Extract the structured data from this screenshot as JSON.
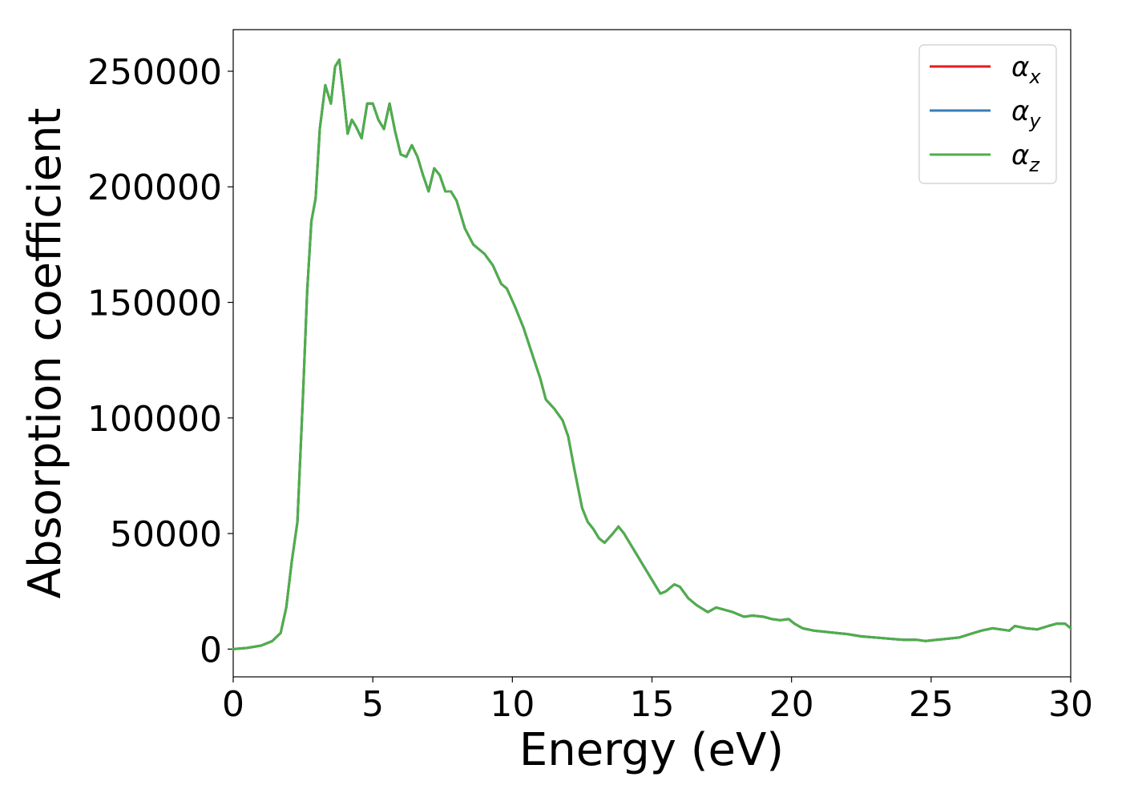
{
  "chart_data": {
    "type": "line",
    "xlabel": "Energy (eV)",
    "ylabel": "Absorption coefficient",
    "xlim": [
      0,
      30
    ],
    "ylim": [
      -12000,
      268000
    ],
    "xticks": [
      0,
      5,
      10,
      15,
      20,
      25,
      30
    ],
    "yticks": [
      0,
      50000,
      100000,
      150000,
      200000,
      250000
    ],
    "grid": false,
    "legend_position": "top-right",
    "series": [
      {
        "name": "α",
        "subscript": "x",
        "color": "#e41a1c"
      },
      {
        "name": "α",
        "subscript": "y",
        "color": "#377eb8"
      },
      {
        "name": "α",
        "subscript": "z",
        "color": "#4daf4a"
      }
    ],
    "x": [
      0,
      0.5,
      1.0,
      1.4,
      1.7,
      1.9,
      2.1,
      2.3,
      2.5,
      2.65,
      2.8,
      2.95,
      3.1,
      3.3,
      3.5,
      3.65,
      3.8,
      3.95,
      4.1,
      4.25,
      4.4,
      4.6,
      4.8,
      5.0,
      5.2,
      5.4,
      5.6,
      5.8,
      6.0,
      6.2,
      6.4,
      6.6,
      6.8,
      7.0,
      7.2,
      7.4,
      7.6,
      7.8,
      8.0,
      8.3,
      8.6,
      9.0,
      9.3,
      9.6,
      9.8,
      10.1,
      10.4,
      10.7,
      11.0,
      11.2,
      11.5,
      11.8,
      12.0,
      12.2,
      12.5,
      12.7,
      12.9,
      13.1,
      13.3,
      13.6,
      13.8,
      14.0,
      14.2,
      14.4,
      14.7,
      15.0,
      15.3,
      15.5,
      15.8,
      16.0,
      16.3,
      16.6,
      17.0,
      17.3,
      17.6,
      17.9,
      18.3,
      18.6,
      19.0,
      19.3,
      19.6,
      19.9,
      20.1,
      20.4,
      20.8,
      21.2,
      21.6,
      22.0,
      22.5,
      23.0,
      23.5,
      24.0,
      24.5,
      24.8,
      25.2,
      25.6,
      26.0,
      26.4,
      26.8,
      27.2,
      27.5,
      27.8,
      28.0,
      28.4,
      28.8,
      29.2,
      29.5,
      29.8,
      30.0
    ],
    "values": [
      0,
      500,
      1500,
      3500,
      7000,
      18000,
      38000,
      55000,
      110000,
      155000,
      185000,
      195000,
      225000,
      244000,
      236000,
      252000,
      255000,
      240000,
      223000,
      229000,
      226000,
      221000,
      236000,
      236000,
      229000,
      225000,
      236000,
      224000,
      214000,
      213000,
      218000,
      213000,
      205000,
      198000,
      208000,
      205000,
      198000,
      198000,
      194000,
      182000,
      175000,
      171000,
      166000,
      158000,
      156000,
      148000,
      139000,
      128000,
      117000,
      108000,
      104000,
      99000,
      92000,
      79000,
      61000,
      55000,
      52000,
      48000,
      46000,
      50000,
      53000,
      50000,
      46000,
      42000,
      36000,
      30000,
      24000,
      25000,
      28000,
      27000,
      22000,
      19000,
      16000,
      18000,
      17000,
      16000,
      14000,
      14500,
      14000,
      13000,
      12500,
      13000,
      11000,
      9000,
      8000,
      7500,
      7000,
      6500,
      5500,
      5000,
      4500,
      4000,
      4000,
      3500,
      4000,
      4500,
      5000,
      6500,
      8000,
      9000,
      8500,
      8000,
      10000,
      9000,
      8500,
      10000,
      11000,
      11000,
      9000
    ]
  }
}
